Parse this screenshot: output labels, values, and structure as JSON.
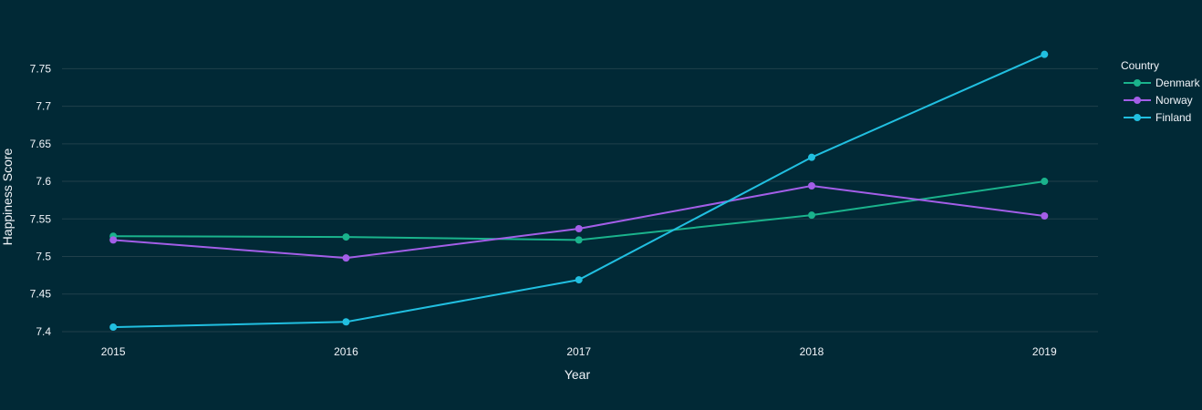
{
  "chart_data": {
    "type": "line",
    "x": [
      2015,
      2016,
      2017,
      2018,
      2019
    ],
    "x_tick_labels": [
      "2015",
      "2016",
      "2017",
      "2018",
      "2019"
    ],
    "xlabel": "Year",
    "ylabel": "Happiness Score",
    "y_ticks": [
      7.4,
      7.45,
      7.5,
      7.55,
      7.6,
      7.65,
      7.7,
      7.75
    ],
    "y_tick_labels": [
      "7.4",
      "7.45",
      "7.5",
      "7.55",
      "7.6",
      "7.65",
      "7.7",
      "7.75"
    ],
    "ylim": [
      7.383,
      7.805
    ],
    "grid": true,
    "legend_title": "Country",
    "legend_position": "top-right",
    "series": [
      {
        "name": "Denmark",
        "color": "#1ab38c",
        "values": [
          7.527,
          7.526,
          7.522,
          7.555,
          7.6
        ]
      },
      {
        "name": "Norway",
        "color": "#a35ee8",
        "values": [
          7.522,
          7.498,
          7.537,
          7.594,
          7.554
        ]
      },
      {
        "name": "Finland",
        "color": "#21bfe0",
        "values": [
          7.406,
          7.413,
          7.469,
          7.632,
          7.769
        ]
      }
    ],
    "colors": {
      "background": "#012936",
      "grid": "#21404b",
      "text": "#f2f5fa"
    }
  }
}
